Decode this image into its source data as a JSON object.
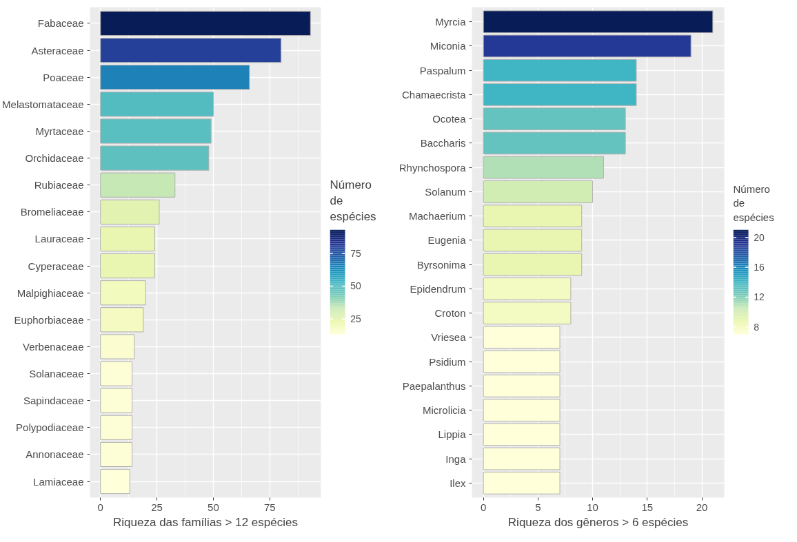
{
  "chart_data": [
    {
      "type": "bar",
      "orientation": "horizontal",
      "xlabel": "Riqueza das famílias > 12 espécies",
      "clabel": "Número de espécies",
      "categories": [
        "Fabaceae",
        "Asteraceae",
        "Poaceae",
        "Melastomataceae",
        "Myrtaceae",
        "Orchidaceae",
        "Rubiaceae",
        "Bromeliaceae",
        "Lauraceae",
        "Cyperaceae",
        "Malpighiaceae",
        "Euphorbiaceae",
        "Verbenaceae",
        "Solanaceae",
        "Sapindaceae",
        "Polypodiaceae",
        "Annonaceae",
        "Lamiaceae"
      ],
      "values": [
        93,
        80,
        66,
        50,
        49,
        48,
        33,
        26,
        24,
        24,
        20,
        19,
        15,
        14,
        14,
        14,
        14,
        13
      ],
      "xlim": [
        -4.65,
        97.65
      ],
      "xticks": [
        0,
        25,
        50,
        75
      ],
      "clim": [
        13,
        93
      ],
      "cticks": [
        25,
        50,
        75
      ],
      "grid": true
    },
    {
      "type": "bar",
      "orientation": "horizontal",
      "xlabel": "Riqueza dos gêneros > 6 espécies",
      "clabel": "Número de espécies",
      "categories": [
        "Myrcia",
        "Miconia",
        "Paspalum",
        "Chamaecrista",
        "Ocotea",
        "Baccharis",
        "Rhynchospora",
        "Solanum",
        "Machaerium",
        "Eugenia",
        "Byrsonima",
        "Epidendrum",
        "Croton",
        "Vriesea",
        "Psidium",
        "Paepalanthus",
        "Microlicia",
        "Lippia",
        "Inga",
        "Ilex"
      ],
      "values": [
        21,
        19,
        14,
        14,
        13,
        13,
        11,
        10,
        9,
        9,
        9,
        8,
        8,
        7,
        7,
        7,
        7,
        7,
        7,
        7
      ],
      "xlim": [
        -1.05,
        22.05
      ],
      "xticks": [
        0,
        5,
        10,
        15,
        20
      ],
      "clim": [
        7,
        21
      ],
      "cticks": [
        8,
        12,
        16,
        20
      ],
      "grid": true
    }
  ]
}
